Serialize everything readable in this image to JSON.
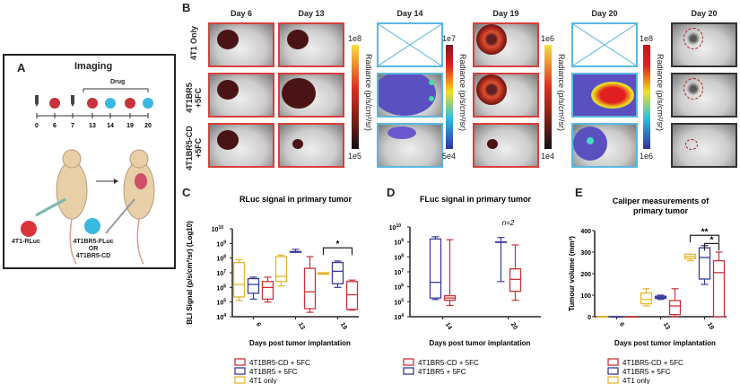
{
  "panels": {
    "a": {
      "label": "A",
      "title": "Imaging",
      "drug_label": "Drug",
      "timeline_days": [
        "0",
        "6",
        "7",
        "13",
        "14",
        "19",
        "20"
      ],
      "cell_1": "4T1-RLuc",
      "cell_2_line1": "4T1BR5-FLuc",
      "cell_2_or": "OR",
      "cell_2_line2": "4T1BR5-CD"
    },
    "b": {
      "label": "B",
      "days": [
        "Day 6",
        "Day 13",
        "Day 14",
        "Day 19",
        "Day 20",
        "Day 20"
      ],
      "rows": [
        "4T1 Only",
        "4T1BR5 +5FC",
        "4T1BR5-CD +5FC"
      ],
      "colorbars": [
        {
          "max": "1e8",
          "min": "1e5",
          "title": "Radiance (p/s/cm²/sr)"
        },
        {
          "max": "1e7",
          "min": "5e4",
          "title": "Radiance (p/s/cm²/sr)"
        },
        {
          "max": "1e6",
          "min": "1e4",
          "title": "Radiance (p/s/cm²/sr)"
        },
        {
          "max": "1e8",
          "min": "1e6",
          "title": "Radiance (p/s/cm²/sr)"
        }
      ]
    },
    "c": {
      "label": "C"
    },
    "d": {
      "label": "D"
    },
    "e": {
      "label": "E"
    }
  },
  "colors": {
    "red": "#c8323a",
    "blue": "#3a3a9c",
    "yellow": "#e6b52e",
    "rluc_frame": "#d9403a",
    "fluc_frame": "#5bb8e0"
  },
  "chart_data": [
    {
      "id": "C",
      "type": "box",
      "title": "RLuc signal in primary tumor",
      "xlabel": "Days post tumor implantation",
      "ylabel": "BLI Signal (p/s/cm²/sr) (Log10)",
      "yscale": "log",
      "ylim": [
        4,
        10
      ],
      "yticks": [
        "10^4",
        "10^5",
        "10^6",
        "10^7",
        "10^8",
        "10^9",
        "10^10"
      ],
      "categories": [
        "6",
        "13",
        "19"
      ],
      "series": [
        {
          "name": "4T1 only",
          "color": "#e6b52e",
          "boxes": [
            [
              5.1,
              5.35,
              6.2,
              7.7,
              7.9
            ],
            [
              6.1,
              6.4,
              6.75,
              8.1,
              8.2
            ],
            [
              6.9,
              6.9,
              6.95,
              7.0,
              7.0
            ]
          ]
        },
        {
          "name": "4T1BR5 + 5FC",
          "color": "#3a3a9c",
          "boxes": [
            [
              5.2,
              5.6,
              6.2,
              6.6,
              6.7
            ],
            [
              8.4,
              8.4,
              8.4,
              8.45,
              8.6
            ],
            [
              6.0,
              6.25,
              7.1,
              7.7,
              7.8
            ]
          ]
        },
        {
          "name": "4T1BR5-CD + 5FC",
          "color": "#c8323a",
          "boxes": [
            [
              5.0,
              5.2,
              6.0,
              6.4,
              6.7
            ],
            [
              4.3,
              4.55,
              5.7,
              7.3,
              8.1
            ],
            [
              4.45,
              4.5,
              5.5,
              6.4,
              6.5
            ]
          ]
        }
      ],
      "legend_order": [
        2,
        1,
        0
      ],
      "significance": [
        {
          "category": "19",
          "from": "4T1 only",
          "to": "4T1BR5-CD + 5FC",
          "mark": "*"
        }
      ]
    },
    {
      "id": "D",
      "type": "box",
      "title": "FLuc signal in primary tumor",
      "xlabel": "Days post tumor implantation",
      "ylabel": "BLI Signal (p/s/cm²/sr) (Log10)",
      "yscale": "log",
      "ylim": [
        4,
        10
      ],
      "yticks": [
        "10^4",
        "10^5",
        "10^6",
        "10^7",
        "10^8",
        "10^9",
        "10^10"
      ],
      "categories": [
        "14",
        "20"
      ],
      "annotation": "n=2",
      "series": [
        {
          "name": "4T1BR5 + 5FC",
          "color": "#3a3a9c",
          "boxes": [
            [
              5.15,
              5.25,
              6.3,
              9.2,
              9.35
            ],
            [
              6.35,
              9.0,
              9.0,
              9.0,
              9.3
            ]
          ]
        },
        {
          "name": "4T1BR5-CD + 5FC",
          "color": "#c8323a",
          "boxes": [
            [
              4.75,
              5.1,
              5.25,
              5.4,
              9.15
            ],
            [
              5.1,
              5.7,
              6.5,
              7.2,
              8.8
            ]
          ]
        }
      ],
      "legend_order": [
        1,
        0
      ],
      "significance": []
    },
    {
      "id": "E",
      "type": "box",
      "title": "Caliper measurements of primary tumor",
      "xlabel": "Days post tumor implantation",
      "ylabel": "Tumour volume (mm³)",
      "yscale": "linear",
      "ylim": [
        0,
        400
      ],
      "yticks": [
        "0",
        "100",
        "200",
        "300",
        "400"
      ],
      "categories": [
        "6",
        "13",
        "19"
      ],
      "series": [
        {
          "name": "4T1 only",
          "color": "#e6b52e",
          "boxes": [
            [
              0,
              0,
              0,
              0,
              0
            ],
            [
              50,
              60,
              80,
              110,
              130
            ],
            [
              260,
              270,
              280,
              290,
              290
            ]
          ]
        },
        {
          "name": "4T1BR5 + 5FC",
          "color": "#3a3a9c",
          "boxes": [
            [
              0,
              0,
              0,
              0,
              0
            ],
            [
              80,
              85,
              90,
              95,
              100
            ],
            [
              150,
              175,
              275,
              320,
              330
            ]
          ]
        },
        {
          "name": "4T1BR5-CD + 5FC",
          "color": "#c8323a",
          "boxes": [
            [
              0,
              0,
              0,
              0,
              0
            ],
            [
              0,
              10,
              50,
              75,
              130
            ],
            [
              0,
              0,
              205,
              260,
              300
            ]
          ]
        }
      ],
      "legend_order": [
        2,
        1,
        0
      ],
      "significance": [
        {
          "category": "19",
          "from": "4T1 only",
          "to": "4T1BR5-CD + 5FC",
          "mark": "**"
        },
        {
          "category": "19",
          "from": "4T1BR5 + 5FC",
          "to": "4T1BR5-CD + 5FC",
          "mark": "*"
        }
      ]
    }
  ]
}
